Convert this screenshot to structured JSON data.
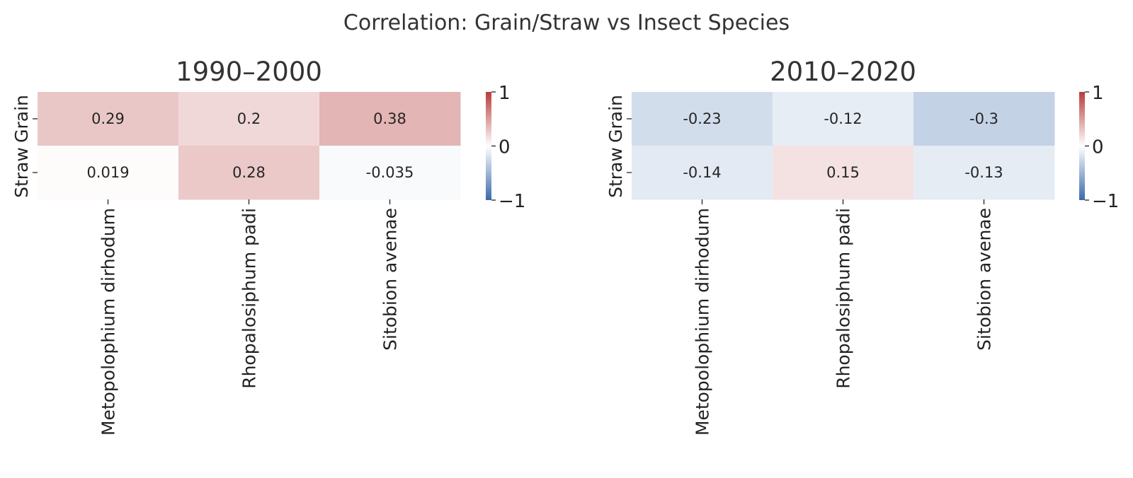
{
  "chart_data": {
    "type": "heatmap",
    "title": "Correlation: Grain/Straw vs Insect Species",
    "colormap": {
      "name": "diverging blue-white-red",
      "negative_color": "#3b6aac",
      "center_color": "#ffffff",
      "positive_color": "#b73d3d",
      "vmin": -1,
      "vmax": 1
    },
    "colorbar_ticks": [
      "1",
      "0",
      "−1"
    ],
    "panels": [
      {
        "title": "1990–2000",
        "rows": [
          "Grain",
          "Straw"
        ],
        "columns": [
          "Metopolophium dirhodum",
          "Rhopalosiphum padi",
          "Sitobion avenae"
        ],
        "values": [
          [
            0.29,
            0.2,
            0.38
          ],
          [
            0.019,
            0.28,
            -0.035
          ]
        ],
        "labels": [
          [
            "0.29",
            "0.2",
            "0.38"
          ],
          [
            "0.019",
            "0.28",
            "-0.035"
          ]
        ]
      },
      {
        "title": "2010–2020",
        "rows": [
          "Grain",
          "Straw"
        ],
        "columns": [
          "Metopolophium dirhodum",
          "Rhopalosiphum padi",
          "Sitobion avenae"
        ],
        "values": [
          [
            -0.23,
            -0.12,
            -0.3
          ],
          [
            -0.14,
            0.15,
            -0.13
          ]
        ],
        "labels": [
          [
            "-0.23",
            "-0.12",
            "-0.3"
          ],
          [
            "-0.14",
            "0.15",
            "-0.13"
          ]
        ]
      }
    ]
  }
}
